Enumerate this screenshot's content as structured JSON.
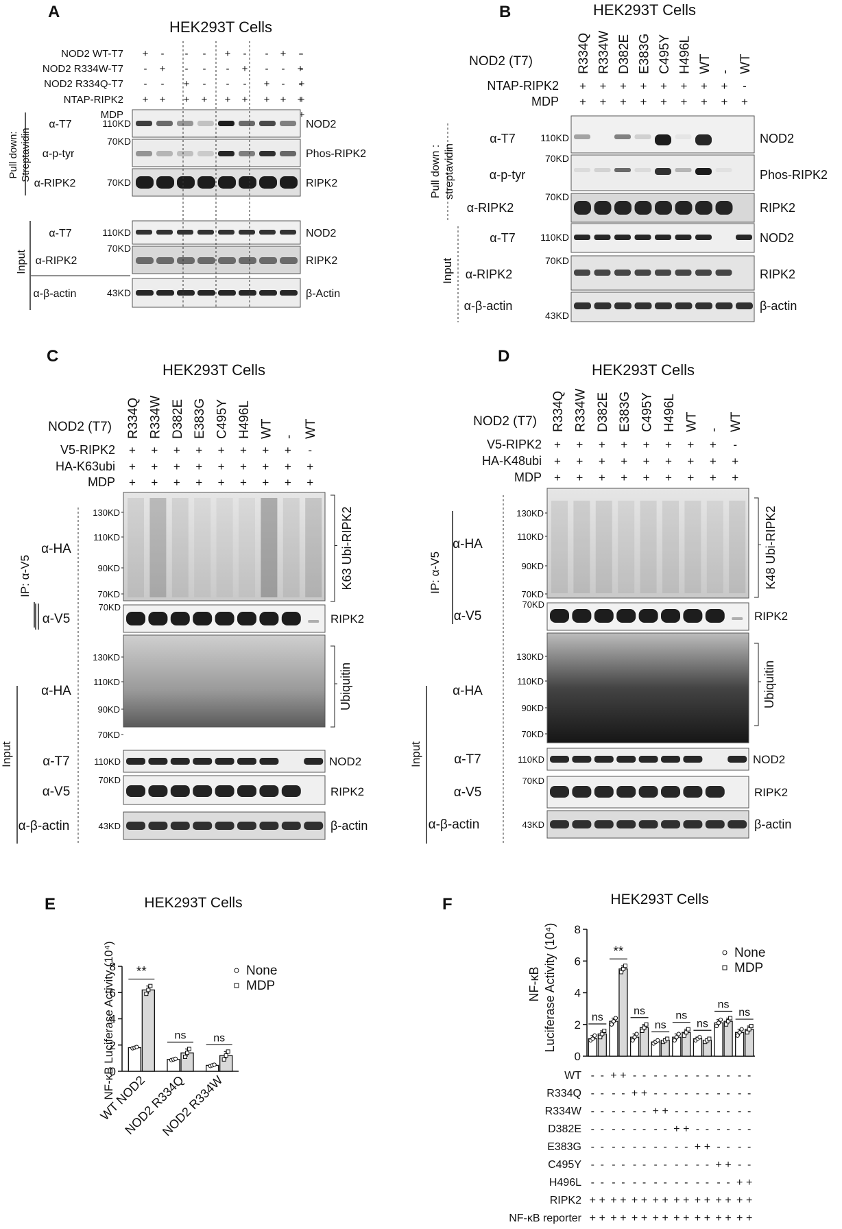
{
  "panels": {
    "A": {
      "letter": "A",
      "title": "HEK293T Cells",
      "rows": [
        {
          "label": "NOD2 WT-T7",
          "signs": [
            "+",
            "-",
            "-",
            "-",
            "+",
            "-",
            "-",
            "+",
            "-",
            "-"
          ]
        },
        {
          "label": "NOD2 R334W-T7",
          "signs": [
            "-",
            "+",
            "-",
            "-",
            "-",
            "+",
            "-",
            "-",
            "+",
            "-"
          ]
        },
        {
          "label": "NOD2 R334Q-T7",
          "signs": [
            "-",
            "-",
            "+",
            "-",
            "-",
            "-",
            "+",
            "-",
            "-",
            "+"
          ]
        },
        {
          "label": "NTAP-RIPK2",
          "signs": [
            "+",
            "+",
            "+",
            "+",
            "+",
            "+",
            "+",
            "+",
            "+",
            "+"
          ]
        },
        {
          "label": "MDP",
          "signs": [
            "-",
            "-",
            "-",
            "-",
            "+",
            "+",
            "+",
            "+",
            "+",
            "+"
          ]
        }
      ],
      "pulldown_label": "Pull down: Streptavidin",
      "input_label": "Input",
      "blots": [
        {
          "ab": "α-T7",
          "mw": "110KD",
          "name": "NOD2"
        },
        {
          "ab": "α-p-tyr",
          "mw": "70KD",
          "name": "Phos-RIPK2"
        },
        {
          "ab": "α-RIPK2",
          "mw": "70KD",
          "name": "RIPK2"
        },
        {
          "ab": "α-T7",
          "mw": "110KD",
          "name": "NOD2"
        },
        {
          "ab": "α-RIPK2",
          "mw": "70KD",
          "name": "RIPK2"
        },
        {
          "ab": "α-β-actin",
          "mw": "43KD",
          "name": "β-Actin"
        }
      ]
    },
    "B": {
      "letter": "B",
      "title": "HEK293T Cells",
      "lanes_label": "NOD2 (T7)",
      "lanes": [
        "R334Q",
        "R334W",
        "D382E",
        "E383G",
        "C495Y",
        "H496L",
        "WT",
        "-",
        "WT"
      ],
      "rows": [
        {
          "label": "NTAP-RIPK2",
          "signs": [
            "+",
            "+",
            "+",
            "+",
            "+",
            "+",
            "+",
            "+",
            "-"
          ]
        },
        {
          "label": "MDP",
          "signs": [
            "+",
            "+",
            "+",
            "+",
            "+",
            "+",
            "+",
            "+",
            "+"
          ]
        }
      ],
      "pulldown_label": "Pull down : streptavidin",
      "input_label": "Input",
      "blots": [
        {
          "ab": "α-T7",
          "mw": "110KD",
          "name": "NOD2"
        },
        {
          "ab": "α-p-tyr",
          "mw": "70KD",
          "name": "Phos-RIPK2"
        },
        {
          "ab": "α-RIPK2",
          "mw": "70KD",
          "name": "RIPK2"
        },
        {
          "ab": "α-T7",
          "mw": "110KD",
          "name": "NOD2"
        },
        {
          "ab": "α-RIPK2",
          "mw": "70KD",
          "name": "RIPK2"
        },
        {
          "ab": "α-β-actin",
          "mw": "43KD",
          "name": "β-actin"
        }
      ]
    },
    "C": {
      "letter": "C",
      "title": "HEK293T Cells",
      "lanes_label": "NOD2 (T7)",
      "lanes": [
        "R334Q",
        "R334W",
        "D382E",
        "E383G",
        "C495Y",
        "H496L",
        "WT",
        "-",
        "WT"
      ],
      "rows": [
        {
          "label": "V5-RIPK2",
          "signs": [
            "+",
            "+",
            "+",
            "+",
            "+",
            "+",
            "+",
            "+",
            "-"
          ]
        },
        {
          "label": "HA-K63ubi",
          "signs": [
            "+",
            "+",
            "+",
            "+",
            "+",
            "+",
            "+",
            "+",
            "+"
          ]
        },
        {
          "label": "MDP",
          "signs": [
            "+",
            "+",
            "+",
            "+",
            "+",
            "+",
            "+",
            "+",
            "+"
          ]
        }
      ],
      "ip_label": "IP: α-V5",
      "input_label": "Input",
      "ab_ha": "α-HA",
      "ab_v5": "α-V5",
      "ab_t7": "α-T7",
      "ab_v5b": "α-V5",
      "ab_actin": "α-β-actin",
      "mw_ladder": [
        "130KD",
        "110KD",
        "90KD",
        "70KD"
      ],
      "mw_70": "70KD",
      "mw_110": "110KD",
      "mw_43": "43KD",
      "name_ubi": "K63 Ubi-RIPK2",
      "name_ripk2": "RIPK2",
      "name_ubiquitin": "Ubiquitin",
      "name_nod2": "NOD2",
      "name_ripk2b": "RIPK2",
      "name_actin": "β-actin"
    },
    "D": {
      "letter": "D",
      "title": "HEK293T Cells",
      "lanes_label": "NOD2 (T7)",
      "lanes": [
        "R334Q",
        "R334W",
        "D382E",
        "E383G",
        "C495Y",
        "H496L",
        "WT",
        "-",
        "WT"
      ],
      "rows": [
        {
          "label": "V5-RIPK2",
          "signs": [
            "+",
            "+",
            "+",
            "+",
            "+",
            "+",
            "+",
            "+",
            "-"
          ]
        },
        {
          "label": "HA-K48ubi",
          "signs": [
            "+",
            "+",
            "+",
            "+",
            "+",
            "+",
            "+",
            "+",
            "+"
          ]
        },
        {
          "label": "MDP",
          "signs": [
            "+",
            "+",
            "+",
            "+",
            "+",
            "+",
            "+",
            "+",
            "+"
          ]
        }
      ],
      "ip_label": "IP: α-V5",
      "input_label": "Input",
      "ab_ha": "α-HA",
      "ab_v5": "α-V5",
      "ab_t7": "α-T7",
      "ab_v5b": "α-V5",
      "ab_actin": "α-β-actin",
      "mw_ladder": [
        "130KD",
        "110KD",
        "90KD",
        "70KD"
      ],
      "mw_70": "70KD",
      "mw_110": "110KD",
      "mw_43": "43KD",
      "name_ubi": "K48 Ubi-RIPK2",
      "name_ripk2": "RIPK2",
      "name_ubiquitin": "Ubiquitin",
      "name_nod2": "NOD2",
      "name_ripk2b": "RIPK2",
      "name_actin": "β-actin"
    }
  },
  "chart_data": [
    {
      "panel": "E",
      "type": "bar",
      "title": "HEK293T Cells",
      "ylabel": "NF-κB Luciferase Activity (10⁴)",
      "ylim": [
        0,
        8
      ],
      "yticks": [
        0,
        2,
        4,
        6,
        8
      ],
      "categories": [
        "WT NOD2",
        "NOD2 R334Q",
        "NOD2 R334W"
      ],
      "series": [
        {
          "name": "None",
          "values": [
            1.8,
            0.9,
            0.45
          ],
          "points": [
            [
              1.75,
              1.8,
              1.85
            ],
            [
              0.85,
              0.9,
              0.95
            ],
            [
              0.4,
              0.45,
              0.5
            ]
          ]
        },
        {
          "name": "MDP",
          "values": [
            6.2,
            1.4,
            1.2
          ],
          "points": [
            [
              5.9,
              6.2,
              6.5
            ],
            [
              1.1,
              1.4,
              1.7
            ],
            [
              0.9,
              1.2,
              1.5
            ]
          ]
        }
      ],
      "significance": [
        "**",
        "ns",
        "ns"
      ],
      "legend": "top-right"
    },
    {
      "panel": "F",
      "type": "bar",
      "title": "HEK293T Cells",
      "ylabel": "NF-κB Luciferase Activity  (10⁴)",
      "ylim": [
        0,
        8
      ],
      "yticks": [
        0,
        2,
        4,
        6,
        8
      ],
      "categories": [
        "-",
        "WT",
        "R334Q",
        "R334W",
        "D382E",
        "E383G",
        "C495Y",
        "H496L"
      ],
      "series": [
        {
          "name": "None",
          "values": [
            1.1,
            2.2,
            1.2,
            0.9,
            1.2,
            1.1,
            2.1,
            1.5
          ],
          "points": [
            [
              1.0,
              1.1,
              1.3
            ],
            [
              2.0,
              2.2,
              2.4
            ],
            [
              1.0,
              1.2,
              1.4
            ],
            [
              0.8,
              0.9,
              1.0
            ],
            [
              1.0,
              1.2,
              1.4
            ],
            [
              1.0,
              1.1,
              1.2
            ],
            [
              1.9,
              2.1,
              2.3
            ],
            [
              1.3,
              1.5,
              1.7
            ]
          ]
        },
        {
          "name": "MDP",
          "values": [
            1.4,
            5.5,
            1.8,
            1.0,
            1.5,
            1.0,
            2.2,
            1.7
          ],
          "points": [
            [
              1.2,
              1.4,
              1.6
            ],
            [
              5.3,
              5.5,
              5.7
            ],
            [
              1.6,
              1.8,
              2.0
            ],
            [
              0.9,
              1.0,
              1.1
            ],
            [
              1.3,
              1.5,
              1.7
            ],
            [
              0.9,
              1.0,
              1.1
            ],
            [
              2.0,
              2.2,
              2.4
            ],
            [
              1.5,
              1.7,
              1.9
            ]
          ]
        }
      ],
      "significance": [
        "ns",
        "**",
        "ns",
        "ns",
        "ns",
        "ns",
        "ns",
        "ns"
      ],
      "legend": "top-right",
      "condition_rows": [
        {
          "label": "WT",
          "signs": [
            "-",
            "-",
            "+",
            "+",
            "-",
            "-",
            "-",
            "-",
            "-",
            "-",
            "-",
            "-",
            "-",
            "-",
            "-",
            "-"
          ]
        },
        {
          "label": "R334Q",
          "signs": [
            "-",
            "-",
            "-",
            "-",
            "+",
            "+",
            "-",
            "-",
            "-",
            "-",
            "-",
            "-",
            "-",
            "-",
            "-",
            "-"
          ]
        },
        {
          "label": "R334W",
          "signs": [
            "-",
            "-",
            "-",
            "-",
            "-",
            "-",
            "+",
            "+",
            "-",
            "-",
            "-",
            "-",
            "-",
            "-",
            "-",
            "-"
          ]
        },
        {
          "label": "D382E",
          "signs": [
            "-",
            "-",
            "-",
            "-",
            "-",
            "-",
            "-",
            "-",
            "+",
            "+",
            "-",
            "-",
            "-",
            "-",
            "-",
            "-"
          ]
        },
        {
          "label": "E383G",
          "signs": [
            "-",
            "-",
            "-",
            "-",
            "-",
            "-",
            "-",
            "-",
            "-",
            "-",
            "+",
            "+",
            "-",
            "-",
            "-",
            "-"
          ]
        },
        {
          "label": "C495Y",
          "signs": [
            "-",
            "-",
            "-",
            "-",
            "-",
            "-",
            "-",
            "-",
            "-",
            "-",
            "-",
            "-",
            "+",
            "+",
            "-",
            "-"
          ]
        },
        {
          "label": "H496L",
          "signs": [
            "-",
            "-",
            "-",
            "-",
            "-",
            "-",
            "-",
            "-",
            "-",
            "-",
            "-",
            "-",
            "-",
            "-",
            "+",
            "+"
          ]
        },
        {
          "label": "RIPK2",
          "signs": [
            "+",
            "+",
            "+",
            "+",
            "+",
            "+",
            "+",
            "+",
            "+",
            "+",
            "+",
            "+",
            "+",
            "+",
            "+",
            "+"
          ]
        },
        {
          "label": "NF-κB reporter",
          "signs": [
            "+",
            "+",
            "+",
            "+",
            "+",
            "+",
            "+",
            "+",
            "+",
            "+",
            "+",
            "+",
            "+",
            "+",
            "+",
            "+"
          ]
        }
      ]
    }
  ]
}
